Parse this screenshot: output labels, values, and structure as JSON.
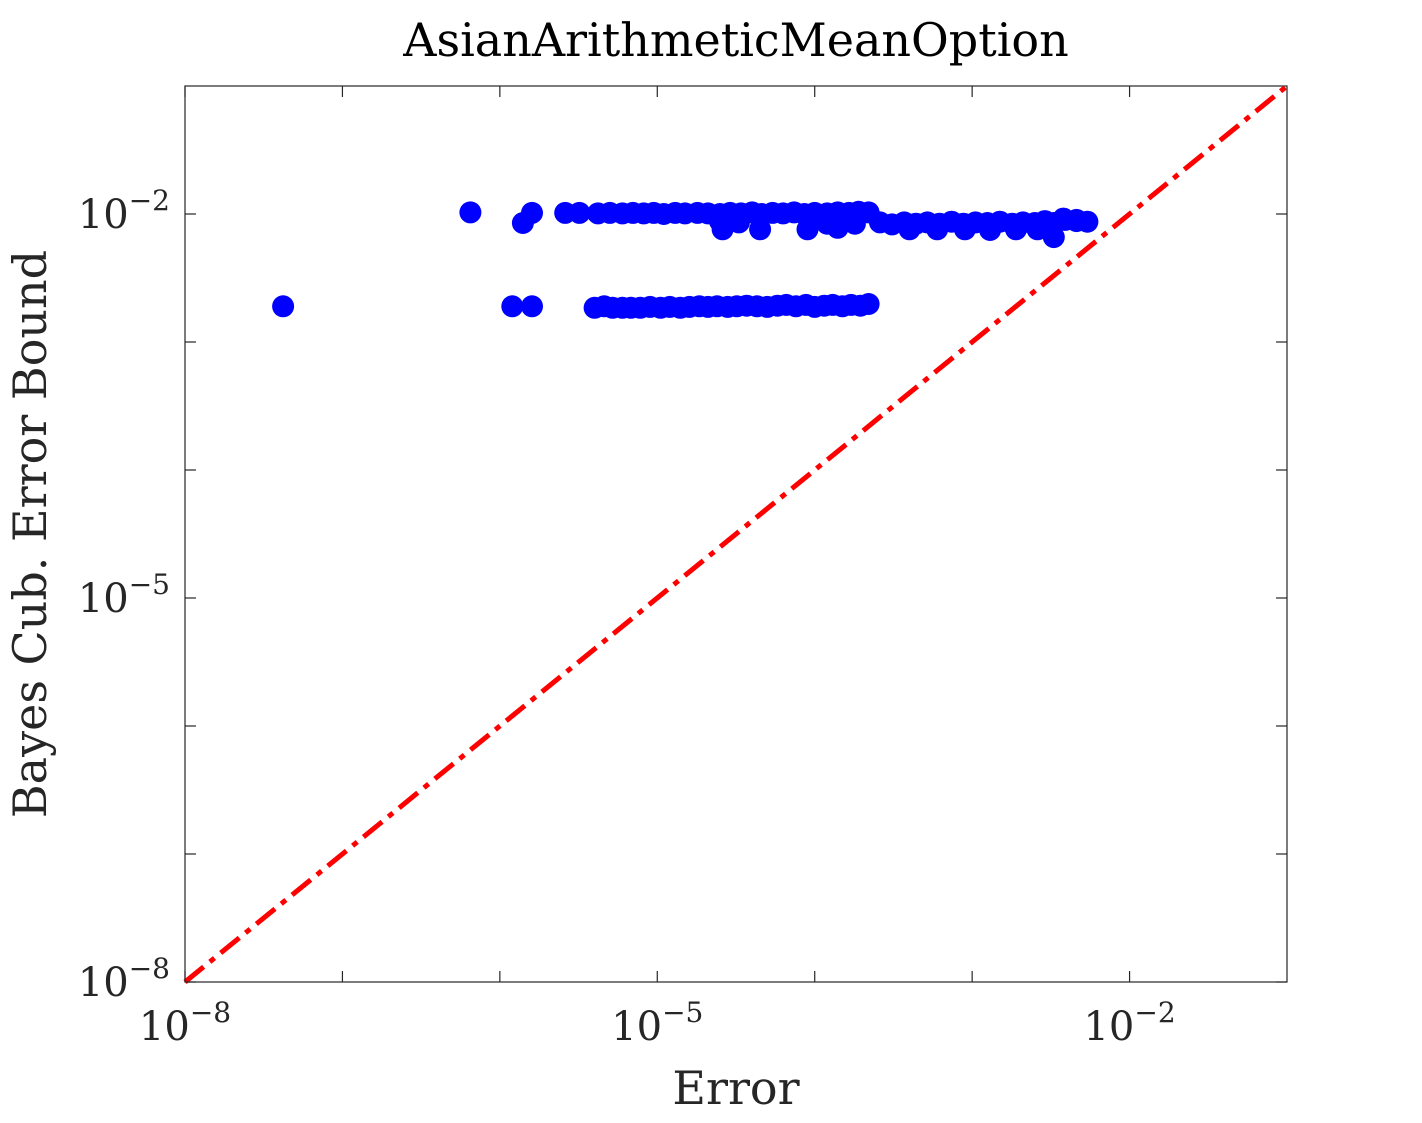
{
  "chart_data": {
    "type": "scatter",
    "title": "AsianArithmeticMeanOption",
    "xlabel": "Error",
    "ylabel": "Bayes Cub. Error Bound",
    "xscale": "log",
    "yscale": "log",
    "xlim": [
      1e-08,
      0.1
    ],
    "ylim": [
      1e-08,
      0.1
    ],
    "xticks": [
      {
        "value": 1e-08,
        "base": "10",
        "exp": "−8"
      },
      {
        "value": 1e-05,
        "base": "10",
        "exp": "−5"
      },
      {
        "value": 0.01,
        "base": "10",
        "exp": "−2"
      }
    ],
    "yticks": [
      {
        "value": 1e-08,
        "base": "10",
        "exp": "−8"
      },
      {
        "value": 1e-05,
        "base": "10",
        "exp": "−5"
      },
      {
        "value": 0.01,
        "base": "10",
        "exp": "−2"
      }
    ],
    "minor_ticks": [
      1e-07,
      1e-06,
      0.0001,
      0.001
    ],
    "grid": false,
    "legend": "none",
    "marker_color": "#0000ff",
    "reference_line": {
      "style": "dash-dot",
      "color": "#ff0000",
      "x": [
        1e-08,
        0.1
      ],
      "y": [
        1e-08,
        0.1
      ]
    },
    "series": [
      {
        "points": [
          [
            4.2e-08,
            0.0019
          ],
          [
            1.2e-06,
            0.0019
          ],
          [
            1.6e-06,
            0.0019
          ],
          [
            4e-06,
            0.00185
          ],
          [
            4.6e-06,
            0.0019
          ],
          [
            5.2e-06,
            0.00185
          ],
          [
            6e-06,
            0.00185
          ],
          [
            6.8e-06,
            0.00185
          ],
          [
            7.8e-06,
            0.00185
          ],
          [
            9e-06,
            0.00188
          ],
          [
            1.05e-05,
            0.00185
          ],
          [
            1.2e-05,
            0.00188
          ],
          [
            1.4e-05,
            0.00185
          ],
          [
            1.6e-05,
            0.00188
          ],
          [
            1.85e-05,
            0.0019
          ],
          [
            2.1e-05,
            0.00188
          ],
          [
            2.4e-05,
            0.0019
          ],
          [
            2.8e-05,
            0.00188
          ],
          [
            3.2e-05,
            0.0019
          ],
          [
            3.7e-05,
            0.00192
          ],
          [
            4.3e-05,
            0.0019
          ],
          [
            5e-05,
            0.00188
          ],
          [
            5.8e-05,
            0.00192
          ],
          [
            6.6e-05,
            0.00195
          ],
          [
            7.6e-05,
            0.0019
          ],
          [
            8.8e-05,
            0.00195
          ],
          [
            0.0001,
            0.00188
          ],
          [
            0.000115,
            0.00192
          ],
          [
            0.00013,
            0.00195
          ],
          [
            0.00015,
            0.0019
          ],
          [
            0.00017,
            0.00195
          ],
          [
            0.000195,
            0.00192
          ],
          [
            0.00022,
            0.00198
          ],
          [
            6.5e-07,
            0.0103
          ],
          [
            1.4e-06,
            0.0085
          ],
          [
            1.6e-06,
            0.0102
          ],
          [
            2.6e-06,
            0.0102
          ],
          [
            3.2e-06,
            0.0102
          ],
          [
            4.2e-06,
            0.0101
          ],
          [
            5e-06,
            0.0102
          ],
          [
            6e-06,
            0.0101
          ],
          [
            7e-06,
            0.0102
          ],
          [
            8.2e-06,
            0.0101
          ],
          [
            9.5e-06,
            0.0102
          ],
          [
            1.1e-05,
            0.01
          ],
          [
            1.3e-05,
            0.0102
          ],
          [
            1.5e-05,
            0.0101
          ],
          [
            1.8e-05,
            0.0102
          ],
          [
            2.1e-05,
            0.0101
          ],
          [
            2.5e-05,
            0.01
          ],
          [
            2.9e-05,
            0.0102
          ],
          [
            3.4e-05,
            0.0101
          ],
          [
            4e-05,
            0.0103
          ],
          [
            4.6e-05,
            0.01
          ],
          [
            5.4e-05,
            0.0102
          ],
          [
            6.3e-05,
            0.0101
          ],
          [
            7.4e-05,
            0.0103
          ],
          [
            8.6e-05,
            0.01
          ],
          [
            0.0001,
            0.0102
          ],
          [
            0.00012,
            0.0101
          ],
          [
            0.00014,
            0.0103
          ],
          [
            0.000165,
            0.0102
          ],
          [
            0.00019,
            0.0104
          ],
          [
            0.00022,
            0.0103
          ],
          [
            2.6e-05,
            0.0076
          ],
          [
            4.5e-05,
            0.0076
          ],
          [
            9e-05,
            0.0076
          ],
          [
            0.00014,
            0.0078
          ],
          [
            2.5e-05,
            0.0088
          ],
          [
            3.3e-05,
            0.0086
          ],
          [
            0.00012,
            0.0084
          ],
          [
            0.00018,
            0.0084
          ],
          [
            0.00026,
            0.0086
          ],
          [
            0.00031,
            0.0083
          ],
          [
            0.00037,
            0.0086
          ],
          [
            0.00044,
            0.0084
          ],
          [
            0.00052,
            0.0086
          ],
          [
            0.00062,
            0.0084
          ],
          [
            0.00074,
            0.0087
          ],
          [
            0.00088,
            0.0084
          ],
          [
            0.00105,
            0.0086
          ],
          [
            0.00125,
            0.0085
          ],
          [
            0.0015,
            0.0087
          ],
          [
            0.0018,
            0.0084
          ],
          [
            0.0021,
            0.0086
          ],
          [
            0.0025,
            0.0085
          ],
          [
            0.0029,
            0.0088
          ],
          [
            0.0033,
            0.0085
          ],
          [
            0.0039,
            0.009
          ],
          [
            0.0046,
            0.0088
          ],
          [
            0.0004,
            0.0076
          ],
          [
            0.0006,
            0.0076
          ],
          [
            0.0009,
            0.0076
          ],
          [
            0.0013,
            0.0075
          ],
          [
            0.0019,
            0.0076
          ],
          [
            0.0026,
            0.0076
          ],
          [
            0.0033,
            0.0066
          ],
          [
            0.0038,
            0.0092
          ],
          [
            0.0046,
            0.009
          ],
          [
            0.0054,
            0.0087
          ]
        ]
      }
    ]
  }
}
